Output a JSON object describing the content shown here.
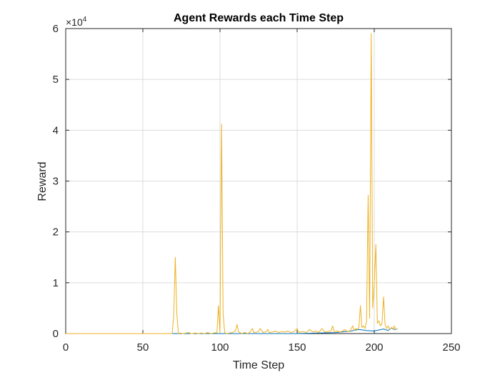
{
  "chart_data": {
    "type": "line",
    "title": "Agent Rewards each Time Step",
    "xlabel": "Time Step",
    "ylabel": "Reward",
    "xlim": [
      0,
      250
    ],
    "ylim": [
      0,
      6
    ],
    "y_exponent_label": "×10",
    "y_exponent_power": "4",
    "grid": true,
    "xticks": [
      "0",
      "50",
      "100",
      "150",
      "200",
      "250"
    ],
    "yticks": [
      "0",
      "1",
      "2",
      "3",
      "4",
      "5",
      "6"
    ],
    "colors": {
      "axes": "#262626",
      "grid": "#dcdcdc",
      "series_1": "#0072BD",
      "series_2": "#EDB120"
    },
    "series": [
      {
        "x": [
          0,
          50,
          70,
          100,
          150,
          175,
          185,
          190,
          195,
          200,
          203,
          206,
          209,
          211,
          213,
          215
        ],
        "values": [
          0,
          0,
          0,
          0,
          0,
          0.02,
          0.05,
          0.08,
          0.06,
          0.05,
          0.07,
          0.09,
          0.06,
          0.11,
          0.08,
          0.09
        ]
      },
      {
        "x": [
          0,
          50,
          69,
          70,
          71,
          72,
          73,
          74,
          76,
          78,
          80,
          81,
          82,
          84,
          86,
          88,
          90,
          92,
          94,
          96,
          98,
          99,
          100,
          101,
          102,
          103,
          104,
          106,
          108,
          110,
          111,
          112,
          114,
          116,
          118,
          120,
          121,
          122,
          124,
          125,
          126,
          128,
          130,
          131,
          132,
          134,
          136,
          138,
          140,
          142,
          144,
          146,
          148,
          150,
          151,
          152,
          154,
          156,
          158,
          160,
          162,
          163,
          164,
          166,
          168,
          170,
          172,
          173,
          174,
          176,
          178,
          180,
          181,
          182,
          184,
          186,
          187,
          188,
          189,
          190,
          191,
          192,
          193,
          194,
          195,
          196,
          197,
          198,
          199,
          200,
          201,
          202,
          203,
          204,
          205,
          206,
          207,
          208,
          209,
          210,
          211,
          212,
          213,
          214,
          215
        ],
        "values": [
          0,
          0,
          0,
          0.35,
          1.5,
          0.4,
          0,
          0.01,
          0,
          0.01,
          0.02,
          0,
          0,
          0.01,
          0,
          0.01,
          0,
          0.02,
          0,
          0.01,
          0.02,
          0.55,
          0.01,
          4.12,
          0.4,
          0.03,
          0,
          0.01,
          0.02,
          0.05,
          0.18,
          0.04,
          0,
          0.02,
          0,
          0.05,
          0.1,
          0.02,
          0.03,
          0.04,
          0.1,
          0.02,
          0.04,
          0.08,
          0.02,
          0.03,
          0.05,
          0.02,
          0.04,
          0.03,
          0.05,
          0.02,
          0.04,
          0.1,
          0.02,
          0.03,
          0.04,
          0.02,
          0.08,
          0.03,
          0.05,
          0.04,
          0.02,
          0.1,
          0.03,
          0.04,
          0.05,
          0.15,
          0.04,
          0.05,
          0.03,
          0.06,
          0.08,
          0.05,
          0.04,
          0.15,
          0.06,
          0.1,
          0.08,
          0.12,
          0.55,
          0.12,
          0.15,
          0.1,
          0.25,
          2.72,
          0.3,
          5.9,
          0.5,
          1.0,
          1.75,
          0.2,
          0.25,
          0.15,
          0.2,
          0.72,
          0.18,
          0.1,
          0.15,
          0.08,
          0.12,
          0.1,
          0.15,
          0.08,
          0.1
        ]
      }
    ]
  }
}
